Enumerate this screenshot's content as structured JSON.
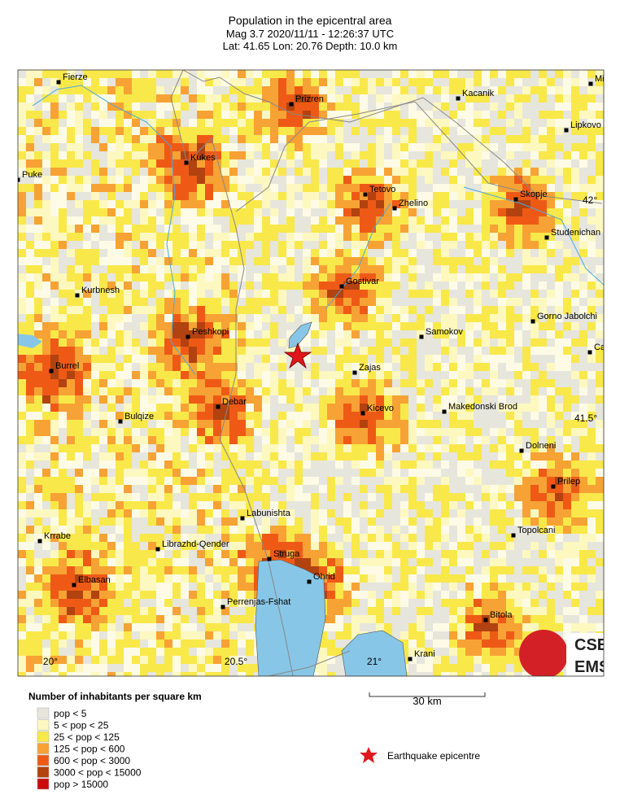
{
  "header": {
    "title": "Population in the epicentral area",
    "line1": "Mag 3.7  2020/11/11 - 12:26:37 UTC",
    "line2": "Lat: 41.65   Lon: 20.76    Depth: 10.0 km"
  },
  "map": {
    "cities": [
      "Fierze",
      "Prizren",
      "Kacanik",
      "Mi",
      "Lipkovo",
      "Kukes",
      "Puke",
      "Tetovo",
      "Zhelino",
      "Skopje",
      "Studenichan",
      "Kurbnesh",
      "Gostivar",
      "Gorno Jabolchi",
      "Samokov",
      "Peshkopi",
      "Ca",
      "Burrel",
      "Zajas",
      "Debar",
      "Makedonski Brod",
      "Kicevo",
      "Bulqize",
      "Dolneni",
      "Prilep",
      "Labunishta",
      "Topolcani",
      "Krrabe",
      "Librazhd-Qender",
      "Struga",
      "Ohrid",
      "Elbasan",
      "Perrenjas-Fshat",
      "Bitola",
      "Krani"
    ],
    "lat_labels": [
      "42°",
      "41.5°"
    ],
    "lon_labels": [
      "20°",
      "20.5°",
      "21°"
    ],
    "scale_label": "30 km"
  },
  "legend": {
    "title": "Number of inhabitants per square km",
    "items": [
      {
        "label": "pop < 5",
        "color": "#e6e6dc"
      },
      {
        "label": "5 < pop < 25",
        "color": "#fdf8bf"
      },
      {
        "label": "25 < pop < 125",
        "color": "#f9e84a"
      },
      {
        "label": "125 < pop < 600",
        "color": "#f7a234"
      },
      {
        "label": "600 < pop < 3000",
        "color": "#ee5a16"
      },
      {
        "label": "3000 < pop < 15000",
        "color": "#b2420f"
      },
      {
        "label": "pop > 15000",
        "color": "#cc0a0a"
      }
    ],
    "epicentre": "Earthquake epicentre"
  },
  "logo": {
    "top": "CSEM",
    "bottom": "EMSC"
  }
}
